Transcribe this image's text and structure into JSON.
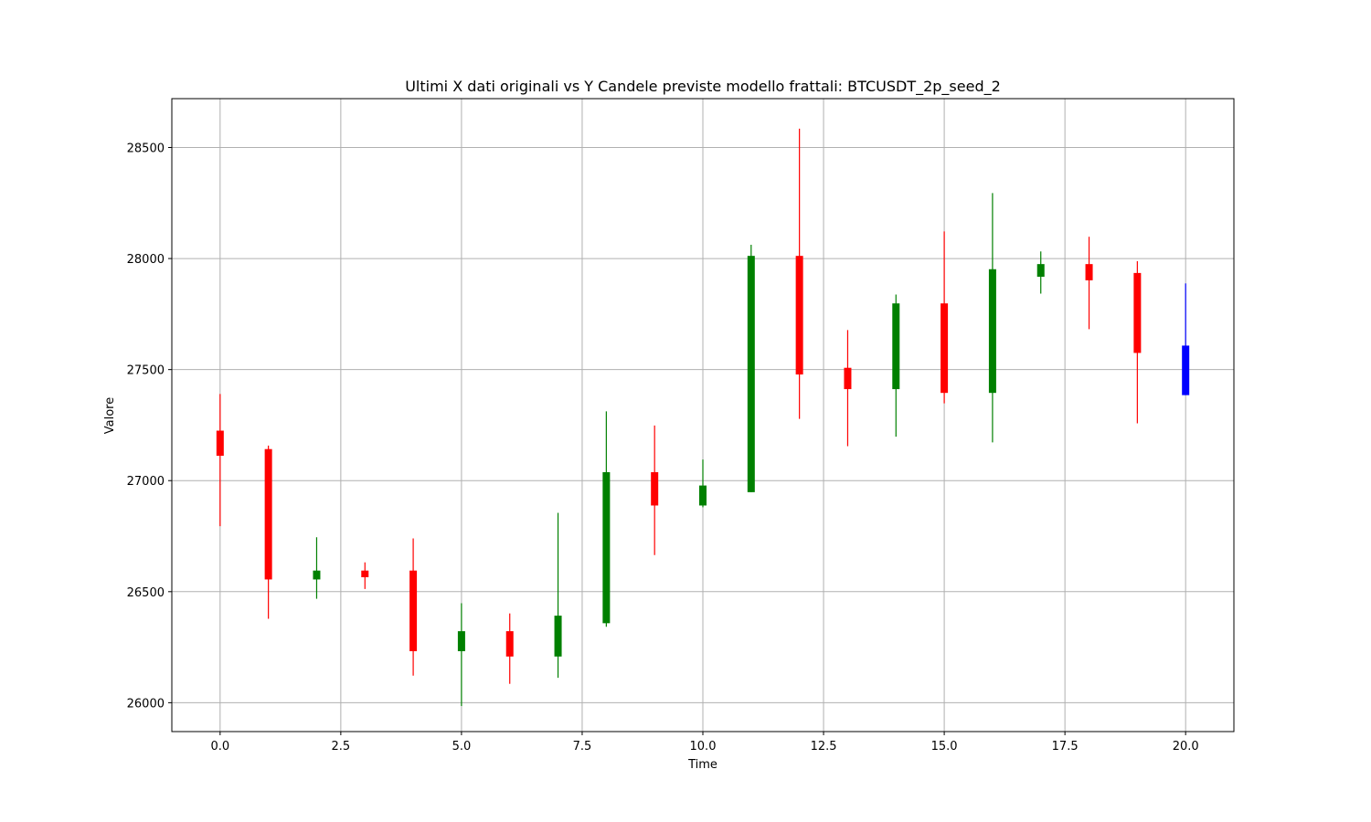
{
  "chart_data": {
    "type": "candlestick",
    "title": "Ultimi X dati originali vs Y Candele previste modello frattali: BTCUSDT_2p_seed_2",
    "xlabel": "Time",
    "ylabel": "Valore",
    "xlim": [
      -1.0,
      21.0
    ],
    "ylim": [
      25870,
      28720
    ],
    "x_ticks": [
      0.0,
      2.5,
      5.0,
      7.5,
      10.0,
      12.5,
      15.0,
      17.5,
      20.0
    ],
    "x_tick_labels": [
      "0.0",
      "2.5",
      "5.0",
      "7.5",
      "10.0",
      "12.5",
      "15.0",
      "17.5",
      "20.0"
    ],
    "y_ticks": [
      26000,
      26500,
      27000,
      27500,
      28000,
      28500
    ],
    "y_tick_labels": [
      "26000",
      "26500",
      "27000",
      "27500",
      "28000",
      "28500"
    ],
    "grid": true,
    "colors": {
      "up": "#008000",
      "down": "#ff0000",
      "predicted": "#0000ff"
    },
    "candles": [
      {
        "t": 0,
        "open": 27225,
        "close": 27112,
        "high": 27390,
        "low": 26795,
        "color": "red"
      },
      {
        "t": 1,
        "open": 27142,
        "close": 26555,
        "high": 27158,
        "low": 26378,
        "color": "red"
      },
      {
        "t": 2,
        "open": 26555,
        "close": 26595,
        "high": 26745,
        "low": 26468,
        "color": "green"
      },
      {
        "t": 3,
        "open": 26595,
        "close": 26565,
        "high": 26632,
        "low": 26512,
        "color": "red"
      },
      {
        "t": 4,
        "open": 26595,
        "close": 26232,
        "high": 26740,
        "low": 26122,
        "color": "red"
      },
      {
        "t": 5,
        "open": 26232,
        "close": 26322,
        "high": 26448,
        "low": 25985,
        "color": "green"
      },
      {
        "t": 6,
        "open": 26322,
        "close": 26208,
        "high": 26402,
        "low": 26085,
        "color": "red"
      },
      {
        "t": 7,
        "open": 26208,
        "close": 26392,
        "high": 26855,
        "low": 26112,
        "color": "green"
      },
      {
        "t": 8,
        "open": 26358,
        "close": 27038,
        "high": 27312,
        "low": 26342,
        "color": "green"
      },
      {
        "t": 9,
        "open": 27038,
        "close": 26888,
        "high": 27248,
        "low": 26665,
        "color": "red"
      },
      {
        "t": 10,
        "open": 26888,
        "close": 26978,
        "high": 27095,
        "low": 26880,
        "color": "green"
      },
      {
        "t": 11,
        "open": 26948,
        "close": 28012,
        "high": 28062,
        "low": 26948,
        "color": "green"
      },
      {
        "t": 12,
        "open": 28012,
        "close": 27478,
        "high": 28585,
        "low": 27278,
        "color": "red"
      },
      {
        "t": 13,
        "open": 27508,
        "close": 27412,
        "high": 27678,
        "low": 27155,
        "color": "red"
      },
      {
        "t": 14,
        "open": 27412,
        "close": 27798,
        "high": 27838,
        "low": 27198,
        "color": "green"
      },
      {
        "t": 15,
        "open": 27798,
        "close": 27395,
        "high": 28122,
        "low": 27348,
        "color": "red"
      },
      {
        "t": 16,
        "open": 27395,
        "close": 27952,
        "high": 28295,
        "low": 27172,
        "color": "green"
      },
      {
        "t": 17,
        "open": 27918,
        "close": 27975,
        "high": 28032,
        "low": 27842,
        "color": "green"
      },
      {
        "t": 18,
        "open": 27975,
        "close": 27902,
        "high": 28098,
        "low": 27682,
        "color": "red"
      },
      {
        "t": 19,
        "open": 27935,
        "close": 27575,
        "high": 27988,
        "low": 27258,
        "color": "red"
      },
      {
        "t": 20,
        "open": 27385,
        "close": 27608,
        "high": 27888,
        "low": 27385,
        "color": "blue"
      }
    ]
  }
}
